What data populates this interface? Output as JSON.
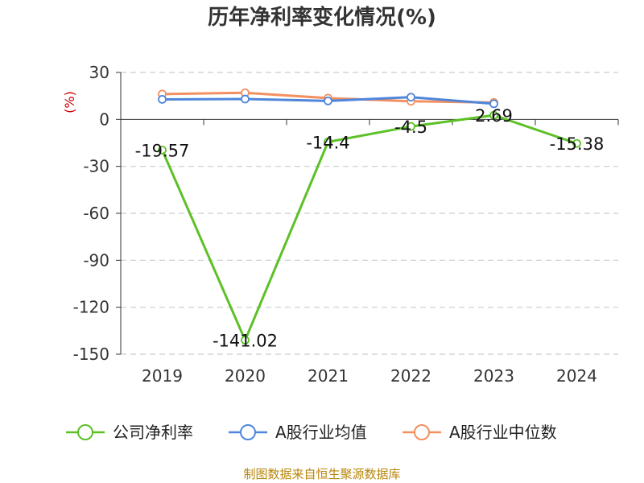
{
  "chart_data": {
    "type": "line",
    "title": "历年净利率变化情况(%)",
    "ylabel": "(%)",
    "categories": [
      "2019",
      "2020",
      "2021",
      "2022",
      "2023",
      "2024"
    ],
    "ylim": [
      -150,
      30
    ],
    "yticks": [
      30,
      0,
      -30,
      -60,
      -90,
      -120,
      -150
    ],
    "grid": true,
    "legend_position": "bottom",
    "series": [
      {
        "name": "公司净利率",
        "color": "#5cc026",
        "values": [
          -19.57,
          -141.02,
          -14.4,
          -4.5,
          2.69,
          -15.38
        ],
        "labels": [
          "-19.57",
          "-141.02",
          "-14.4",
          "-4.5",
          "2.69",
          "-15.38"
        ]
      },
      {
        "name": "A股行业均值",
        "color": "#4f86db",
        "values": [
          12.8,
          13.0,
          11.8,
          14.2,
          10.0,
          null
        ]
      },
      {
        "name": "A股行业中位数",
        "color": "#f39060",
        "values": [
          16.2,
          17.0,
          13.6,
          11.6,
          10.8,
          null
        ]
      }
    ]
  },
  "source_text": "制图数据来自恒生聚源数据库"
}
